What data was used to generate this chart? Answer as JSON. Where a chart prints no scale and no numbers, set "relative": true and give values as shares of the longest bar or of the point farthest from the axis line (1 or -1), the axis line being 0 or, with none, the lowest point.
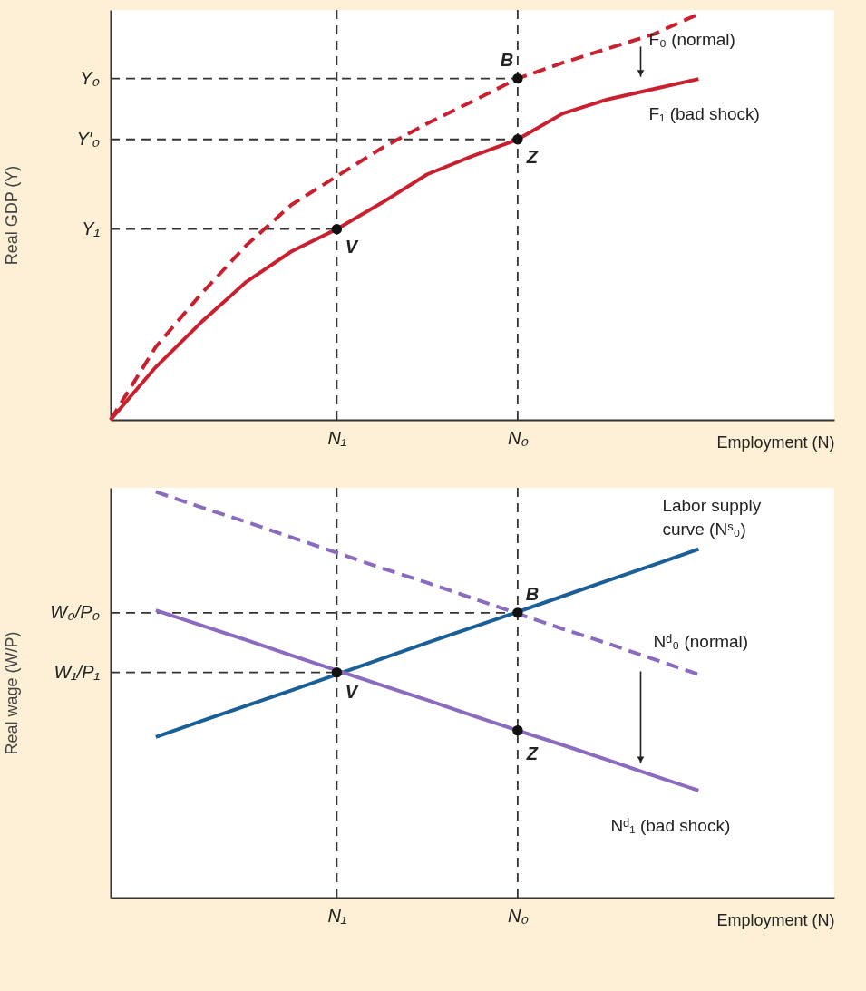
{
  "chart_data": [
    {
      "type": "line",
      "relative": true,
      "xlabel": "Employment (N)",
      "ylabel": "Real GDP (Y)",
      "categories": [
        null,
        null,
        null,
        null,
        null,
        "N₁",
        null,
        null,
        null,
        "N₀",
        null,
        null,
        null,
        null,
        null,
        null,
        null
      ],
      "series": [
        {
          "name": "F₀ (normal)",
          "color": "#c8202f",
          "line_style": "dashed",
          "values": [
            0,
            0.18,
            0.31,
            0.43,
            0.53,
            0.6,
            0.67,
            0.73,
            0.785,
            0.841,
            0.88,
            0.915,
            0.95,
            1,
            null,
            null,
            null
          ]
        },
        {
          "name": "F₁ (bad shock)",
          "color": "#c8202f",
          "line_style": "solid",
          "values": [
            0,
            0.13,
            0.24,
            0.34,
            0.415,
            0.47,
            0.535,
            0.605,
            0.65,
            0.691,
            0.755,
            0.79,
            0.815,
            0.84,
            null,
            null,
            null
          ]
        },
        {
          "type": "scatter",
          "color": "#111111",
          "marker": "circle",
          "x": [
            "N₀",
            "N₀",
            "N₁"
          ],
          "values": [
            0.841,
            0.691,
            0.47
          ]
        }
      ],
      "ref_lines": [
        {
          "axis": "x",
          "value": "N₁",
          "color": "#333333",
          "line_style": "dashed"
        },
        {
          "axis": "x",
          "value": "N₀",
          "color": "#333333",
          "line_style": "dashed"
        },
        {
          "axis": "y",
          "value": 0.841,
          "label": "Y₀",
          "color": "#333333",
          "line_style": "dashed"
        },
        {
          "axis": "y",
          "value": 0.691,
          "label": "Y′₀",
          "color": "#333333",
          "line_style": "dashed"
        },
        {
          "axis": "y",
          "value": 0.47,
          "label": "Y₁",
          "color": "#333333",
          "line_style": "dashed"
        }
      ],
      "annotations": [
        {
          "text": "B",
          "x": "N₀",
          "y": 0.841
        },
        {
          "text": "Z",
          "x": "N₀",
          "y": 0.691
        },
        {
          "text": "V",
          "x": "N₁",
          "y": 0.47
        }
      ]
    },
    {
      "type": "line",
      "relative": true,
      "xlabel": "Employment (N)",
      "ylabel": "Real wage (W/P)",
      "categories": [
        null,
        null,
        null,
        null,
        null,
        "N₁",
        null,
        null,
        null,
        "N₀",
        null,
        null,
        null,
        null,
        null,
        null,
        null
      ],
      "series": [
        {
          "name": "Labor supply curve (Nˢ₀)",
          "color": "#1b5f97",
          "line_style": "solid",
          "values": [
            null,
            0.396,
            0.435,
            0.473,
            0.511,
            0.55,
            0.589,
            0.628,
            0.666,
            0.704,
            0.743,
            0.782,
            0.82,
            0.859,
            null,
            null,
            null
          ]
        },
        {
          "name": "Nᵈ₀ (normal)",
          "color": "#8a6bbd",
          "line_style": "dashed",
          "values": [
            null,
            1,
            0.962,
            0.926,
            0.888,
            0.85,
            0.812,
            0.776,
            0.738,
            0.7,
            0.662,
            0.626,
            0.588,
            0.55,
            null,
            null,
            null
          ]
        },
        {
          "name": "Nᵈ₁ (bad shock)",
          "color": "#8a6bbd",
          "line_style": "solid",
          "values": [
            null,
            0.708,
            0.671,
            0.635,
            0.597,
            0.56,
            0.523,
            0.487,
            0.449,
            0.412,
            0.376,
            0.339,
            0.301,
            0.264,
            null,
            null,
            null
          ]
        },
        {
          "type": "scatter",
          "color": "#111111",
          "marker": "circle",
          "x": [
            "N₀",
            "N₁",
            "N₀"
          ],
          "values": [
            0.702,
            0.555,
            0.412
          ]
        }
      ],
      "ref_lines": [
        {
          "axis": "x",
          "value": "N₁",
          "color": "#333333",
          "line_style": "dashed"
        },
        {
          "axis": "x",
          "value": "N₀",
          "color": "#333333",
          "line_style": "dashed"
        },
        {
          "axis": "y",
          "value": 0.702,
          "label": "W₀/P₀",
          "color": "#333333",
          "line_style": "dashed"
        },
        {
          "axis": "y",
          "value": 0.555,
          "label": "W₁/P₁",
          "color": "#333333",
          "line_style": "dashed"
        }
      ],
      "annotations": [
        {
          "text": "B",
          "x": "N₀",
          "y": 0.702
        },
        {
          "text": "V",
          "x": "N₁",
          "y": 0.555
        },
        {
          "text": "Z",
          "x": "N₀",
          "y": 0.412
        }
      ]
    }
  ]
}
